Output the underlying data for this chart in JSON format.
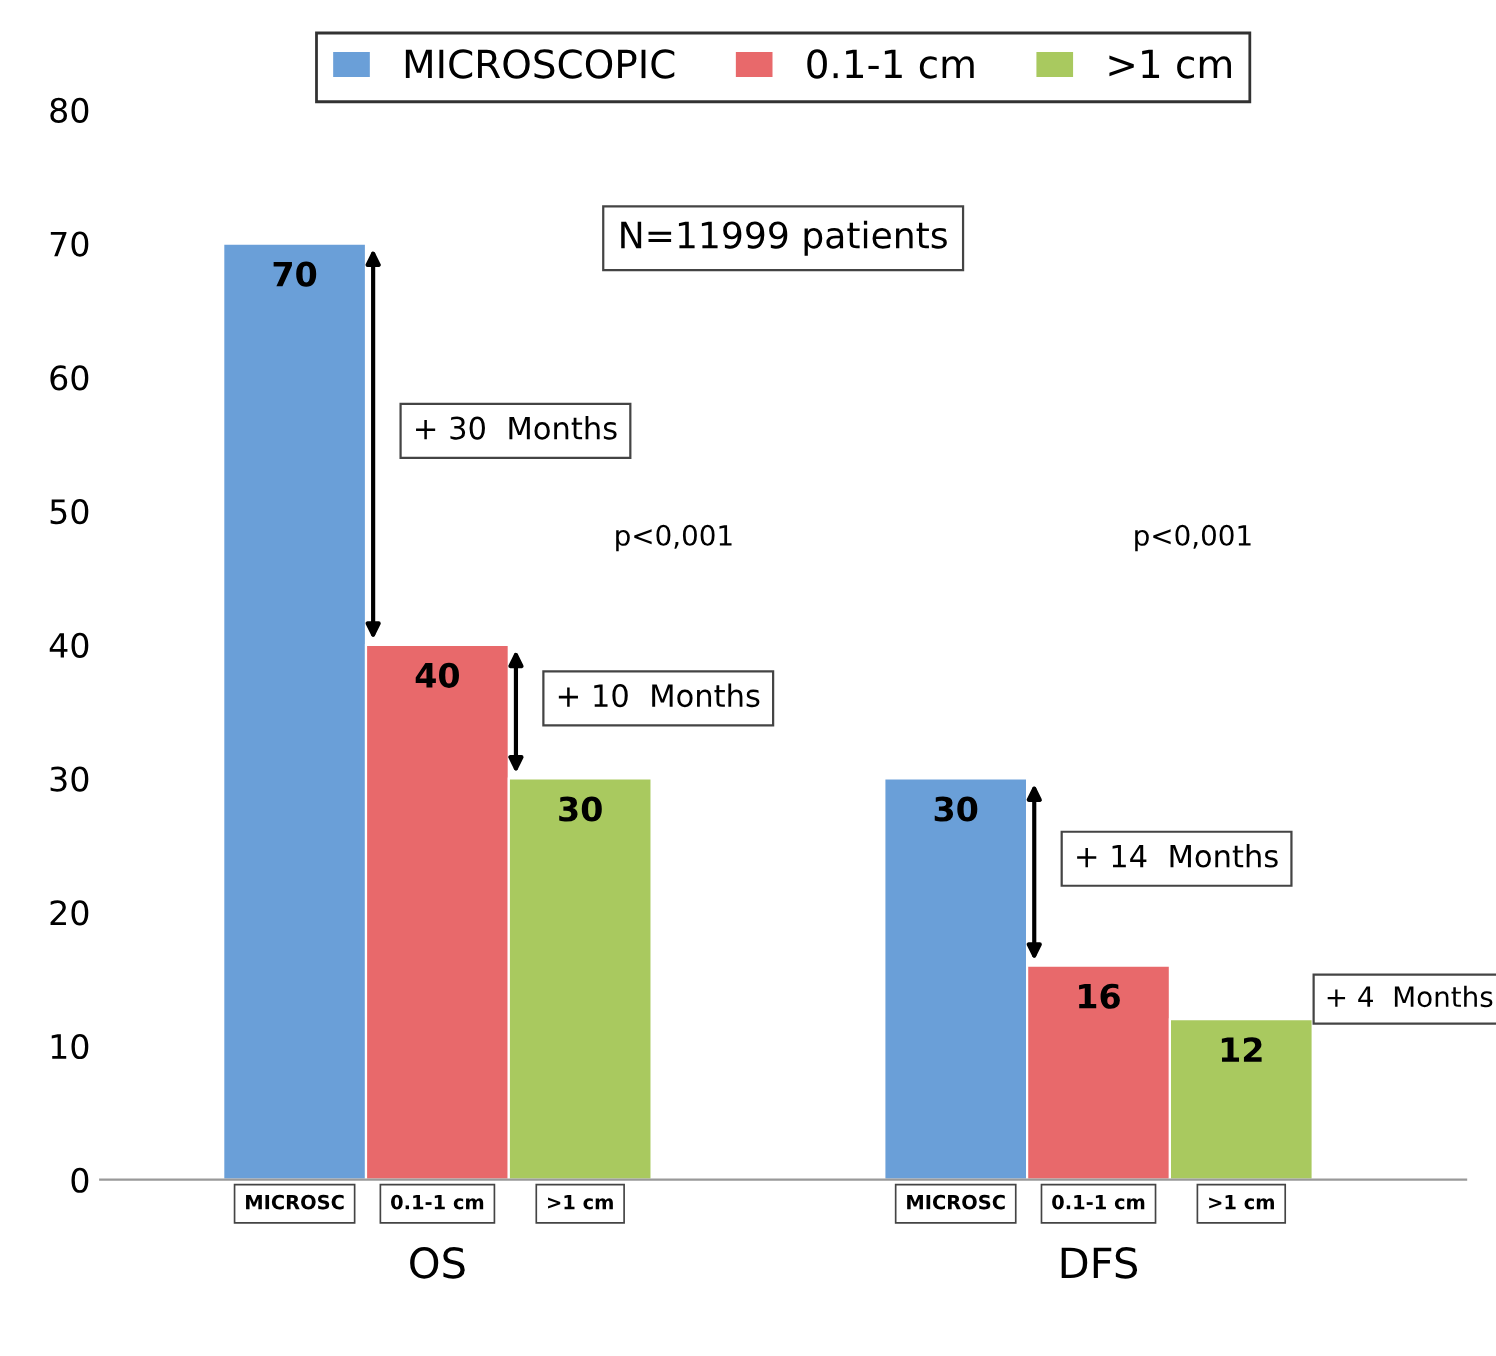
{
  "chart_data": {
    "type": "bar",
    "categories": [
      "OS",
      "DFS"
    ],
    "series": [
      {
        "name": "MICROSCOPIC",
        "color": "#6a9fd8",
        "values": [
          70,
          30
        ]
      },
      {
        "name": "0.1-1 cm",
        "color": "#e8696b",
        "values": [
          40,
          16
        ]
      },
      {
        "name": ">1 cm",
        "color": "#a9c95f",
        "values": [
          30,
          12
        ]
      }
    ],
    "ylim": [
      0,
      80
    ],
    "yticks": [
      0,
      10,
      20,
      30,
      40,
      50,
      60,
      70,
      80
    ],
    "grid": false,
    "legend": "top",
    "data_labels": true,
    "annotations": [
      "N=11999 patients",
      "+ 30  Months",
      "+ 10  Months",
      "+ 14  Months",
      "+ 4  Months",
      "p<0,001",
      "p<0,001",
      "MICROSC",
      "0.1-1 cm",
      ">1 cm",
      "MICROSC",
      "0.1-1 cm",
      ">1 cm"
    ]
  }
}
